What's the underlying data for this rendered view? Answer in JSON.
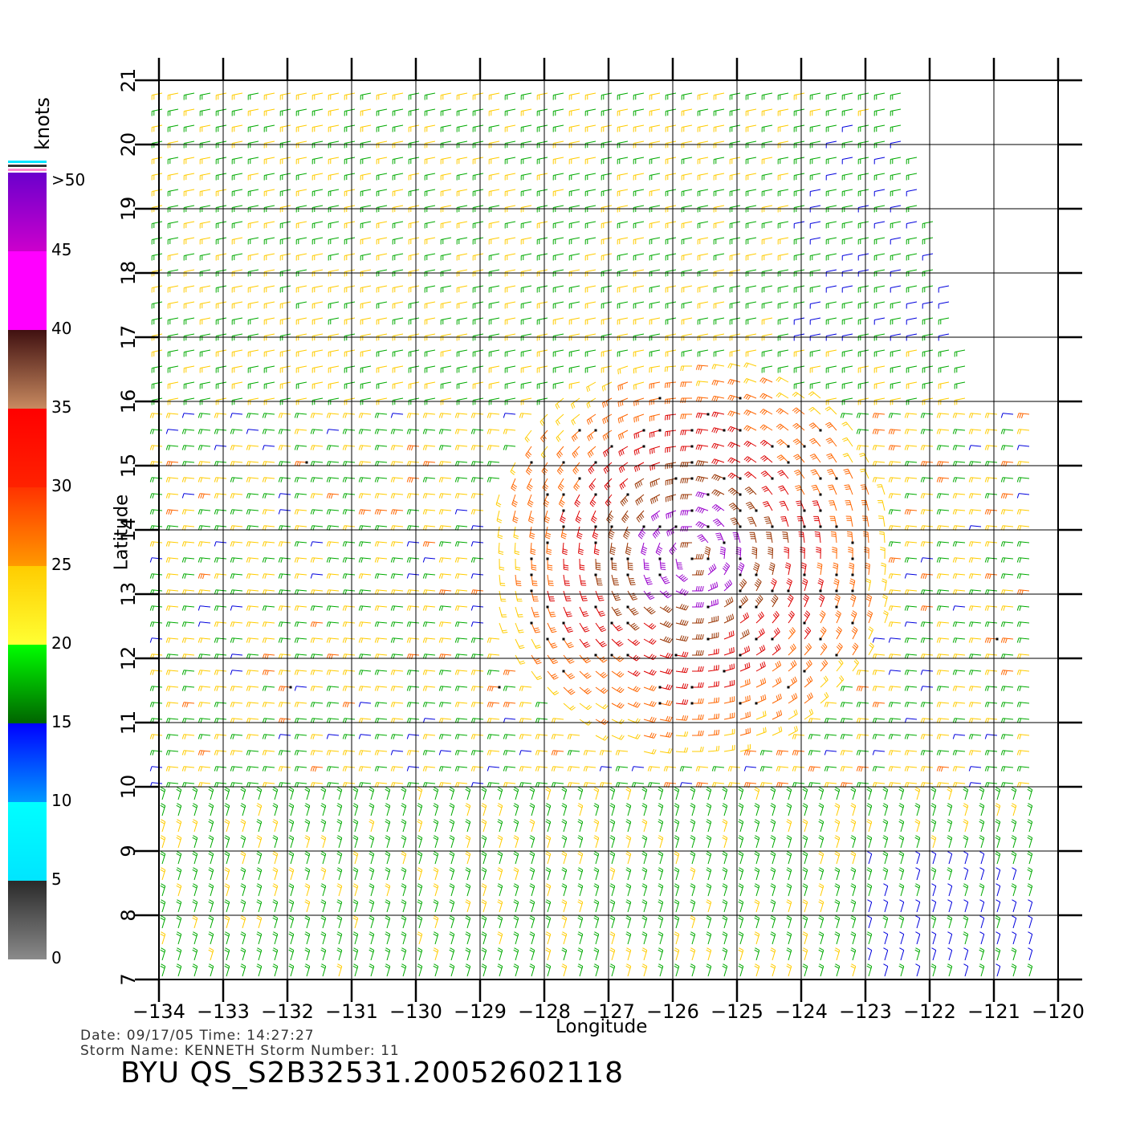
{
  "map": {
    "x_axis_title": "Longitude",
    "y_axis_title": "Latitude",
    "x_ticks": [
      -134,
      -133,
      -132,
      -131,
      -130,
      -129,
      -128,
      -127,
      -126,
      -125,
      -124,
      -123,
      -122,
      -121,
      -120
    ],
    "y_ticks": [
      7,
      8,
      9,
      10,
      11,
      12,
      13,
      14,
      15,
      16,
      17,
      18,
      19,
      20,
      21
    ],
    "lon_range": [
      -134,
      -120
    ],
    "lat_range": [
      7,
      21
    ],
    "storm_center": {
      "lon": -125.7,
      "lat": 13.6
    },
    "field": "wind barbs colored by speed"
  },
  "colorbar": {
    "unit": "knots",
    "labels": [
      "0",
      "5",
      "10",
      "15",
      "20",
      "25",
      "30",
      "35",
      "40",
      "45",
      ">50"
    ],
    "bands": [
      {
        "from": 0,
        "to": 5,
        "top": "#2a2a2a",
        "bottom": "#8a8a8a"
      },
      {
        "from": 5,
        "to": 10,
        "top": "#00ffff",
        "bottom": "#00e5ff"
      },
      {
        "from": 10,
        "to": 15,
        "top": "#0000ff",
        "bottom": "#0099ff"
      },
      {
        "from": 15,
        "to": 20,
        "top": "#00ff00",
        "bottom": "#006400"
      },
      {
        "from": 20,
        "to": 25,
        "top": "#ffcc00",
        "bottom": "#ffff33"
      },
      {
        "from": 25,
        "to": 30,
        "top": "#ff3300",
        "bottom": "#ff9900"
      },
      {
        "from": 30,
        "to": 35,
        "top": "#ff0000",
        "bottom": "#ff2200"
      },
      {
        "from": 35,
        "to": 40,
        "top": "#401010",
        "bottom": "#c88a60"
      },
      {
        "from": 40,
        "to": 45,
        "top": "#ff00ff",
        "bottom": "#ff00ff"
      },
      {
        "from": 45,
        "to": 50,
        "top": "#6a00cc",
        "bottom": "#cc00cc"
      }
    ]
  },
  "footer": {
    "date_line": "Date: 09/17/05   Time: 14:27:27",
    "storm_line": "Storm  Name: KENNETH   Storm  Number: 11",
    "product_id": "BYU  QS_S2B32531.20052602118"
  }
}
